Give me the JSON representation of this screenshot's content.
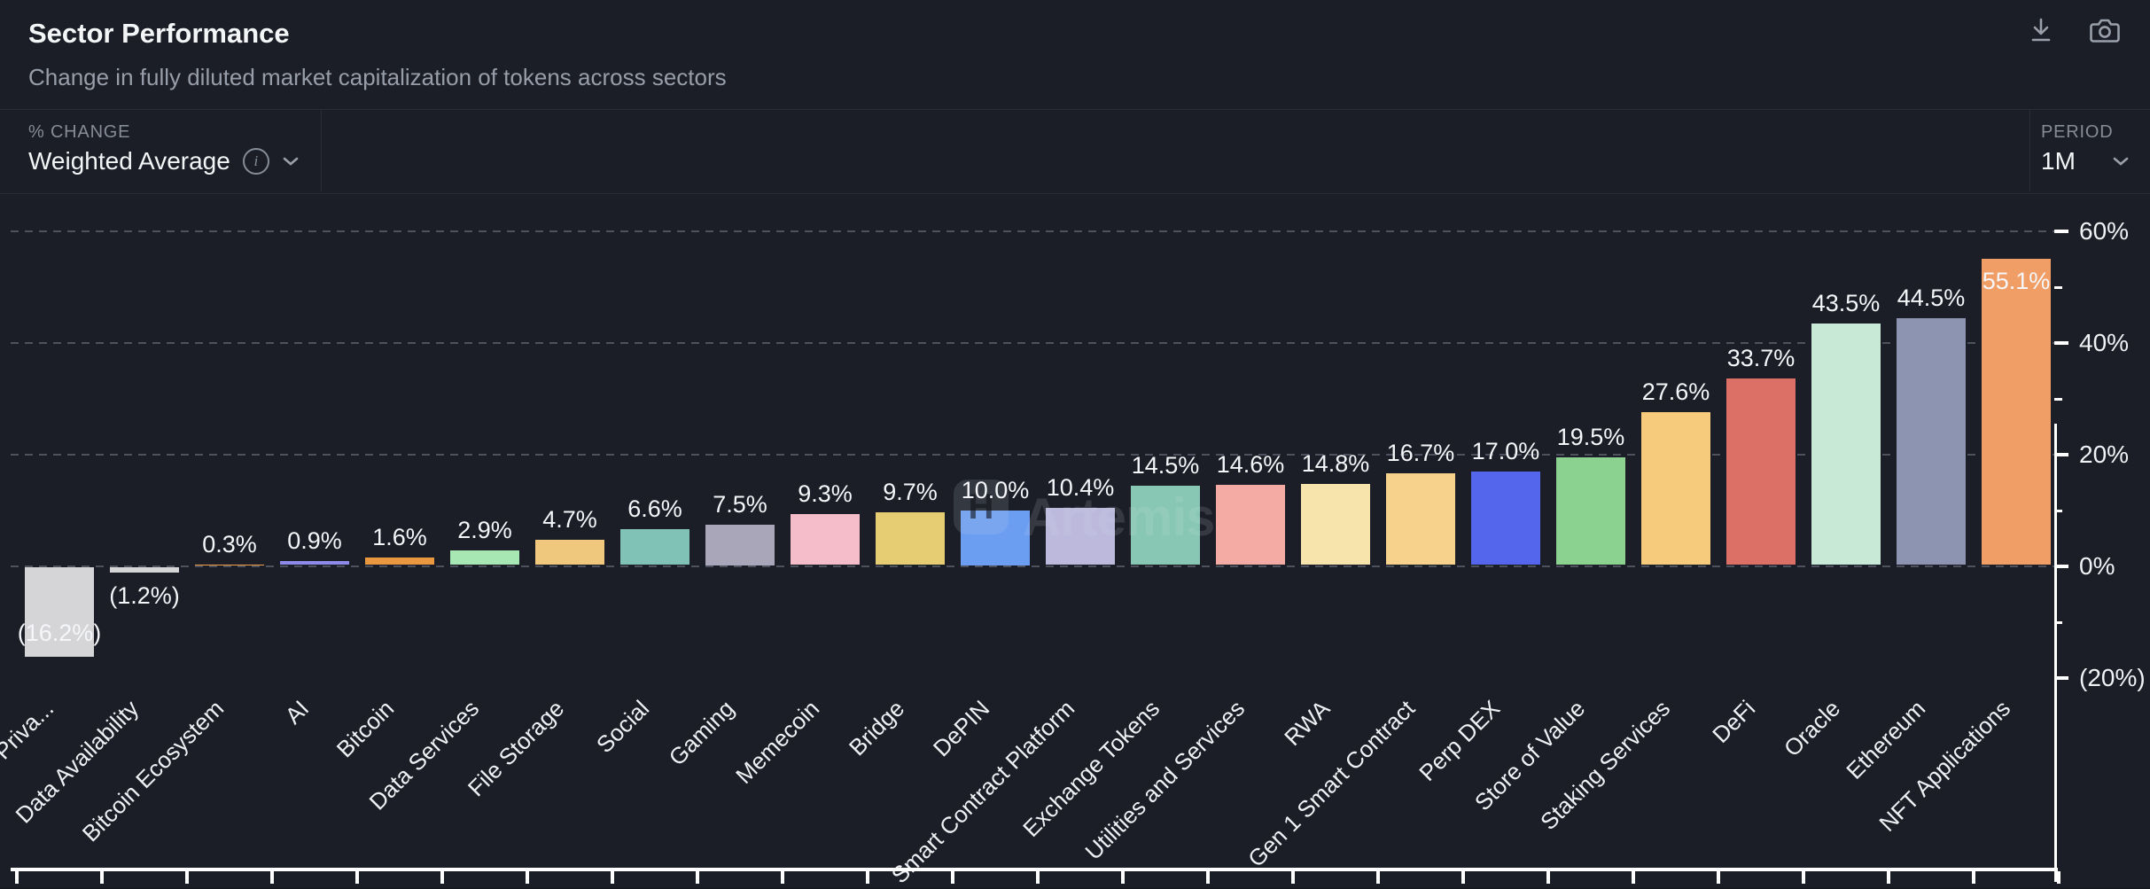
{
  "header": {
    "title": "Sector Performance",
    "subtitle": "Change in fully diluted market capitalization of tokens across sectors",
    "icons": [
      "download-icon",
      "camera-icon"
    ]
  },
  "controls": {
    "metric_label": "% CHANGE",
    "metric_value": "Weighted Average",
    "period_label": "PERIOD",
    "period_value": "1M"
  },
  "watermark": {
    "logo_letter": "H",
    "text": "Artemis"
  },
  "colors": {
    "background": "#1b1e26",
    "border": "#2a2d37",
    "grid": "#4c515d",
    "axis": "#ffffff",
    "muted_text": "#868c97"
  },
  "chart_data": {
    "type": "bar",
    "title": "Sector Performance",
    "xlabel": "",
    "ylabel": "% change",
    "ylim": [
      -20,
      60
    ],
    "grid": "horizontal dashed at 0,20,40,60",
    "legend": "none",
    "categories": [
      "Priva...",
      "Data Availability",
      "Bitcoin Ecosystem",
      "AI",
      "Bitcoin",
      "Data Services",
      "File Storage",
      "Social",
      "Gaming",
      "Memecoin",
      "Bridge",
      "DePIN",
      "Smart Contract Platform",
      "Exchange Tokens",
      "Utilities and Services",
      "RWA",
      "Gen 1 Smart Contract",
      "Perp DEX",
      "Store of Value",
      "Staking Services",
      "DeFi",
      "Oracle",
      "Ethereum",
      "NFT Applications"
    ],
    "values": [
      -16.2,
      -1.2,
      0.3,
      0.9,
      1.6,
      2.9,
      4.7,
      6.6,
      7.5,
      9.3,
      9.7,
      10.0,
      10.4,
      14.5,
      14.6,
      14.8,
      16.7,
      17.0,
      19.5,
      27.6,
      33.7,
      43.5,
      44.5,
      55.1
    ],
    "value_labels": [
      "(16.2%)",
      "(1.2%)",
      "0.3%",
      "0.9%",
      "1.6%",
      "2.9%",
      "4.7%",
      "6.6%",
      "7.5%",
      "9.3%",
      "9.7%",
      "10.0%",
      "10.4%",
      "14.5%",
      "14.6%",
      "14.8%",
      "16.7%",
      "17.0%",
      "19.5%",
      "27.6%",
      "33.7%",
      "43.5%",
      "44.5%",
      "55.1%"
    ],
    "bar_colors": [
      "#d5d5d7",
      "#d5d5d7",
      "#f0a04a",
      "#8e8ae9",
      "#e9983f",
      "#a7e7b3",
      "#f0c87d",
      "#80c2b5",
      "#a8a6b8",
      "#f4bdc9",
      "#e6cc72",
      "#6b9df1",
      "#bcb9dc",
      "#87c7b3",
      "#f4aba3",
      "#f7e3ac",
      "#f6d28c",
      "#5366ec",
      "#8bd18f",
      "#f6cb7b",
      "#dc7067",
      "#c7e9d6",
      "#8c94b1",
      "#f19e66"
    ],
    "y_ticks": [
      {
        "value": 60,
        "label": "60%"
      },
      {
        "value": 40,
        "label": "40%"
      },
      {
        "value": 20,
        "label": "20%"
      },
      {
        "value": 0,
        "label": "0%"
      },
      {
        "value": -20,
        "label": "(20%)"
      }
    ],
    "y_minor_ticks": [
      50,
      30,
      10,
      -10
    ]
  }
}
